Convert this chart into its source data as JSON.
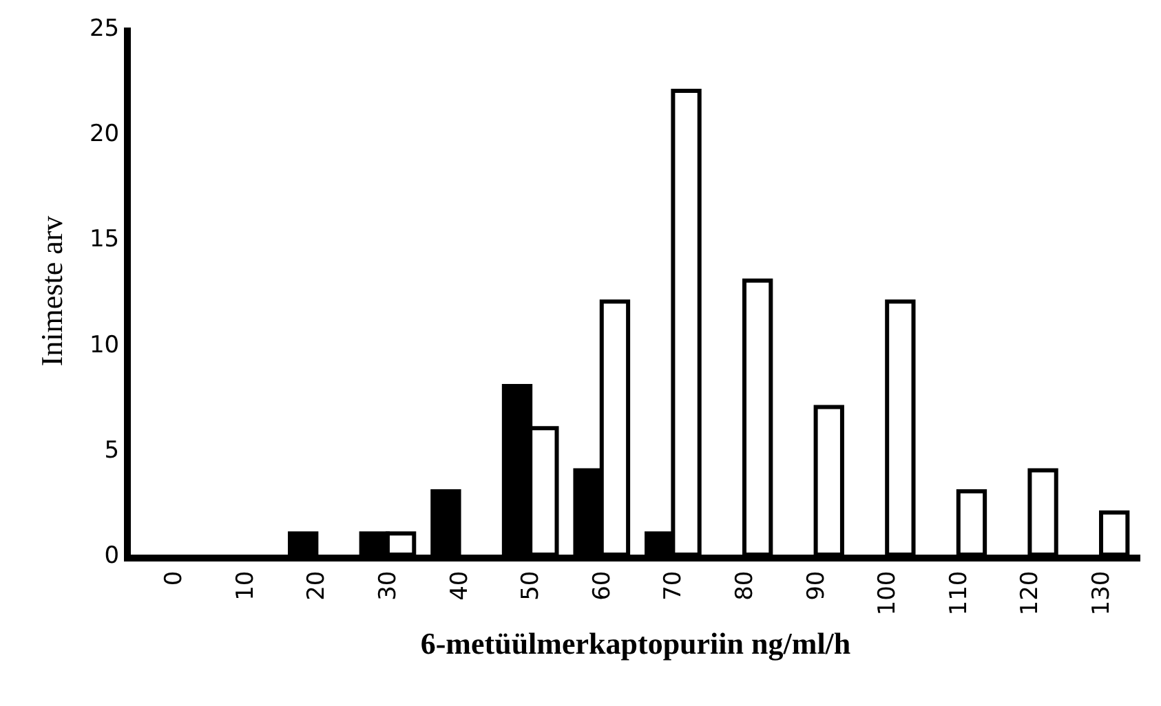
{
  "chart_data": {
    "type": "bar",
    "xlabel": "6-metüülmerkaptopuriin ng/ml/h",
    "ylabel": "Inimeste arv",
    "categories": [
      "0",
      "10",
      "20",
      "30",
      "40",
      "50",
      "60",
      "70",
      "80",
      "90",
      "100",
      "110",
      "120",
      "130"
    ],
    "series": [
      {
        "color": "#000000",
        "values": [
          null,
          null,
          1,
          1,
          3,
          8,
          4,
          1,
          null,
          null,
          null,
          null,
          null,
          null
        ]
      },
      {
        "color": "#ffffff",
        "values": [
          null,
          null,
          null,
          1,
          null,
          6,
          12,
          22,
          13,
          7,
          12,
          3,
          4,
          2
        ]
      }
    ],
    "ylim": [
      0,
      25
    ],
    "yticks": [
      0,
      5,
      10,
      15,
      20,
      25
    ]
  }
}
